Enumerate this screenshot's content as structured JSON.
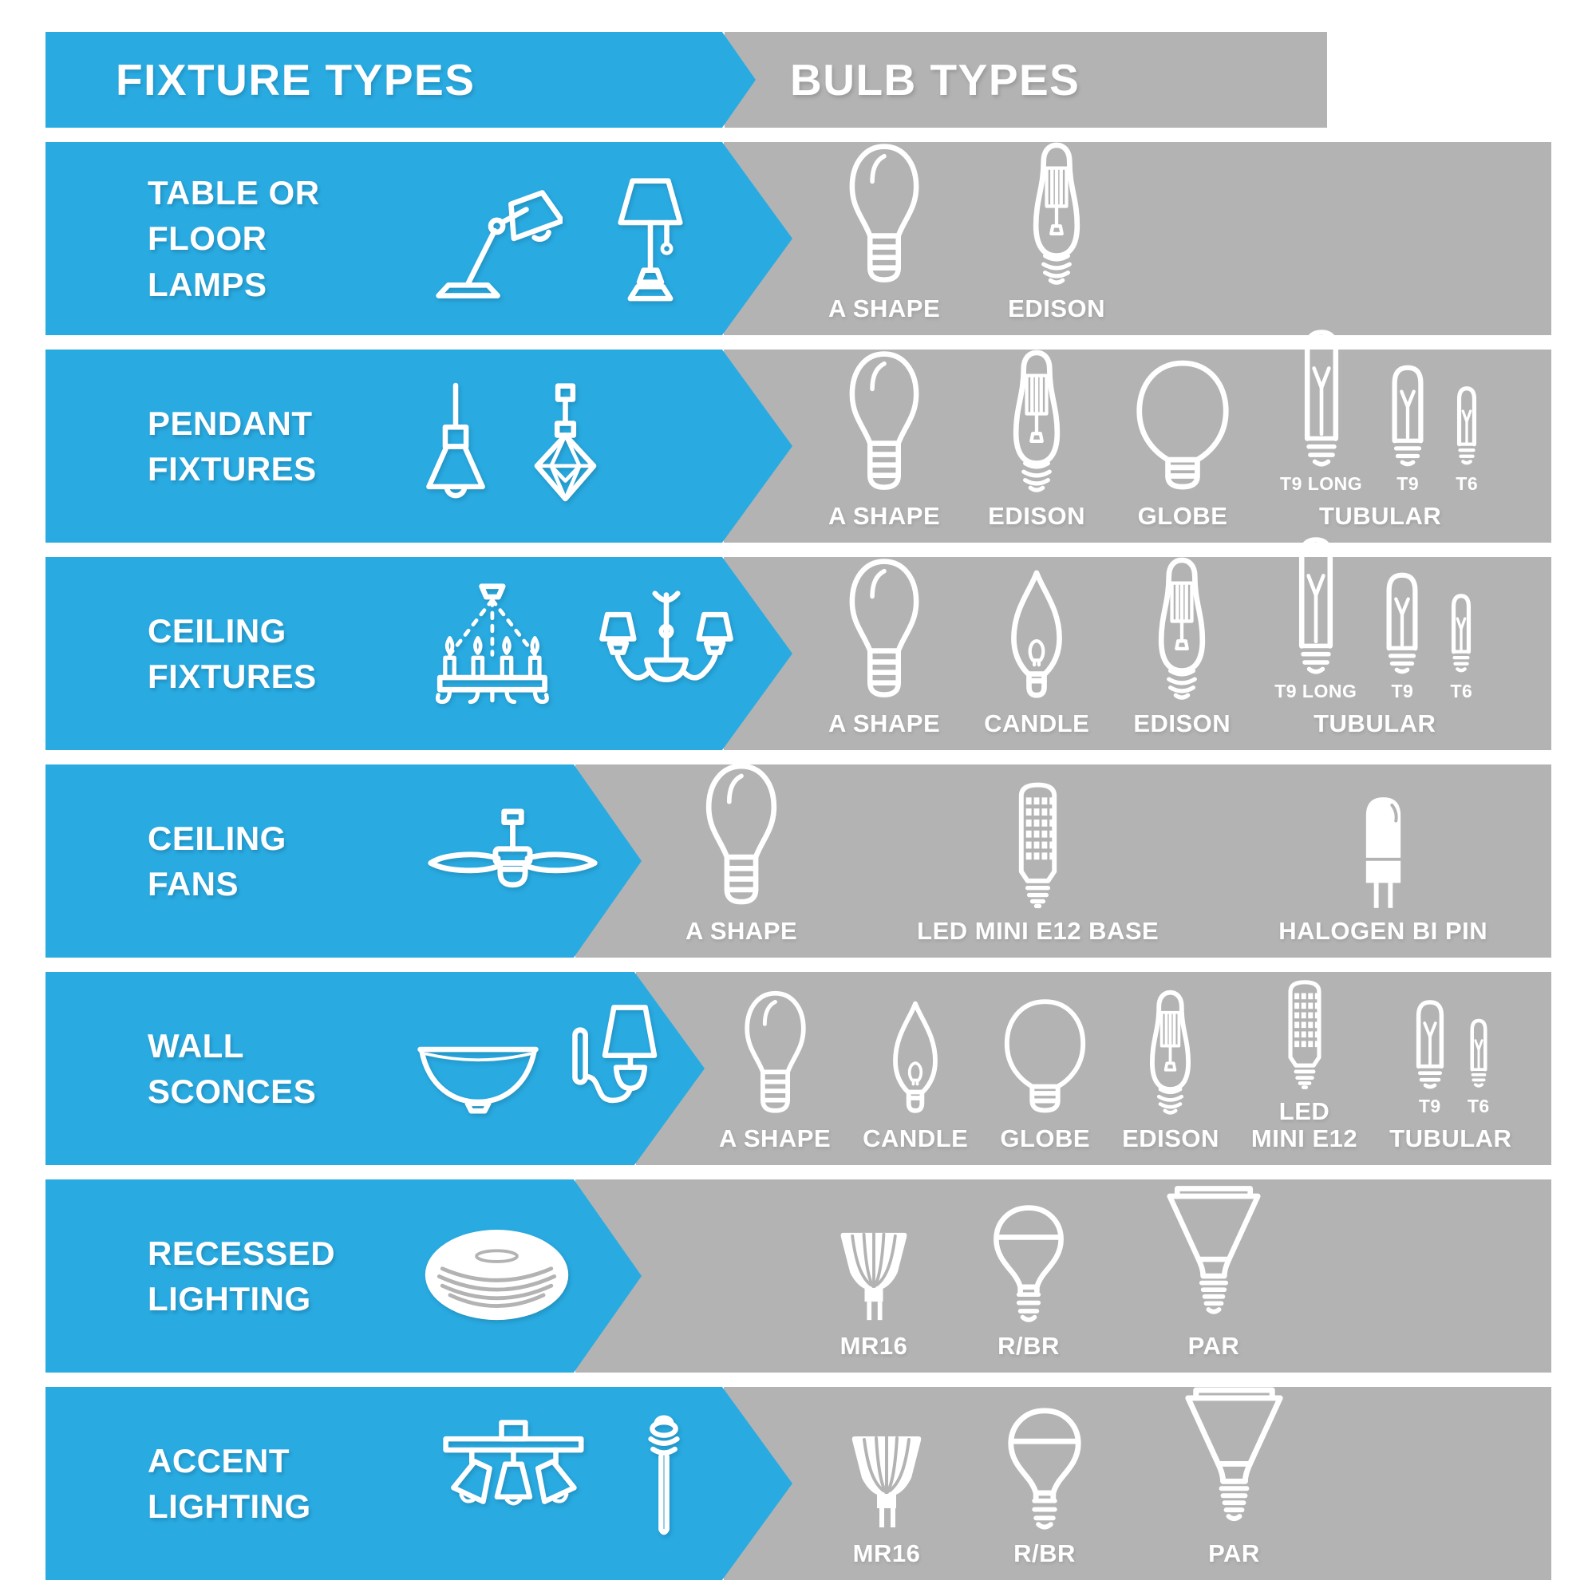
{
  "colors": {
    "accent_blue": "#29ABE2",
    "panel_gray": "#B3B3B3",
    "text_white": "#FFFFFF"
  },
  "header": {
    "fixture_title": "FIXTURE TYPES",
    "bulb_title": "BULB TYPES"
  },
  "rows": [
    {
      "id": "table-or-floor-lamps",
      "fixture_label": "TABLE OR\nFLOOR\nLAMPS",
      "fixture_icons": [
        "desk-lamp",
        "table-lamp"
      ],
      "bulbs": [
        {
          "type": "a-shape",
          "label": "A SHAPE"
        },
        {
          "type": "edison",
          "label": "EDISON"
        }
      ]
    },
    {
      "id": "pendant-fixtures",
      "fixture_label": "PENDANT\nFIXTURES",
      "fixture_icons": [
        "cone-pendant",
        "geometric-pendant"
      ],
      "bulbs": [
        {
          "type": "a-shape",
          "label": "A SHAPE"
        },
        {
          "type": "edison",
          "label": "EDISON"
        },
        {
          "type": "globe",
          "label": "GLOBE"
        },
        {
          "type": "tubular-group",
          "label": "TUBULAR",
          "tubes": [
            {
              "type": "t9-long",
              "sublabel": "T9 LONG"
            },
            {
              "type": "t9",
              "sublabel": "T9"
            },
            {
              "type": "t6",
              "sublabel": "T6"
            }
          ]
        }
      ]
    },
    {
      "id": "ceiling-fixtures",
      "fixture_label": "CEILING\nFIXTURES",
      "fixture_icons": [
        "candle-chandelier",
        "shaded-chandelier"
      ],
      "bulbs": [
        {
          "type": "a-shape",
          "label": "A SHAPE"
        },
        {
          "type": "candle",
          "label": "CANDLE"
        },
        {
          "type": "edison",
          "label": "EDISON"
        },
        {
          "type": "tubular-group",
          "label": "TUBULAR",
          "tubes": [
            {
              "type": "t9-long",
              "sublabel": "T9 LONG"
            },
            {
              "type": "t9",
              "sublabel": "T9"
            },
            {
              "type": "t6",
              "sublabel": "T6"
            }
          ]
        }
      ]
    },
    {
      "id": "ceiling-fans",
      "fixture_label": "CEILING\nFANS",
      "fixture_icons": [
        "ceiling-fan"
      ],
      "bulbs": [
        {
          "type": "a-shape",
          "label": "A SHAPE"
        },
        {
          "type": "led-mini",
          "label": "LED MINI E12 BASE"
        },
        {
          "type": "halogen-bi-pin",
          "label": "HALOGEN BI PIN"
        }
      ]
    },
    {
      "id": "wall-sconces",
      "fixture_label": "WALL\nSCONCES",
      "fixture_icons": [
        "bowl-sconce",
        "shaded-sconce"
      ],
      "bulbs": [
        {
          "type": "a-shape",
          "label": "A SHAPE"
        },
        {
          "type": "candle",
          "label": "CANDLE"
        },
        {
          "type": "globe",
          "label": "GLOBE"
        },
        {
          "type": "edison",
          "label": "EDISON"
        },
        {
          "type": "led-mini",
          "label": "LED\nMINI E12"
        },
        {
          "type": "tubular-group",
          "label": "TUBULAR",
          "tubes": [
            {
              "type": "t9",
              "sublabel": "T9"
            },
            {
              "type": "t6",
              "sublabel": "T6"
            }
          ]
        }
      ]
    },
    {
      "id": "recessed-lighting",
      "fixture_label": "RECESSED\nLIGHTING",
      "fixture_icons": [
        "recessed-light"
      ],
      "bulbs": [
        {
          "type": "mr16",
          "label": "MR16"
        },
        {
          "type": "r-br",
          "label": "R/BR"
        },
        {
          "type": "par",
          "label": "PAR"
        }
      ]
    },
    {
      "id": "accent-lighting",
      "fixture_label": "ACCENT\nLIGHTING",
      "fixture_icons": [
        "track-light",
        "path-light"
      ],
      "bulbs": [
        {
          "type": "mr16",
          "label": "MR16"
        },
        {
          "type": "r-br",
          "label": "R/BR"
        },
        {
          "type": "par",
          "label": "PAR"
        }
      ]
    }
  ]
}
